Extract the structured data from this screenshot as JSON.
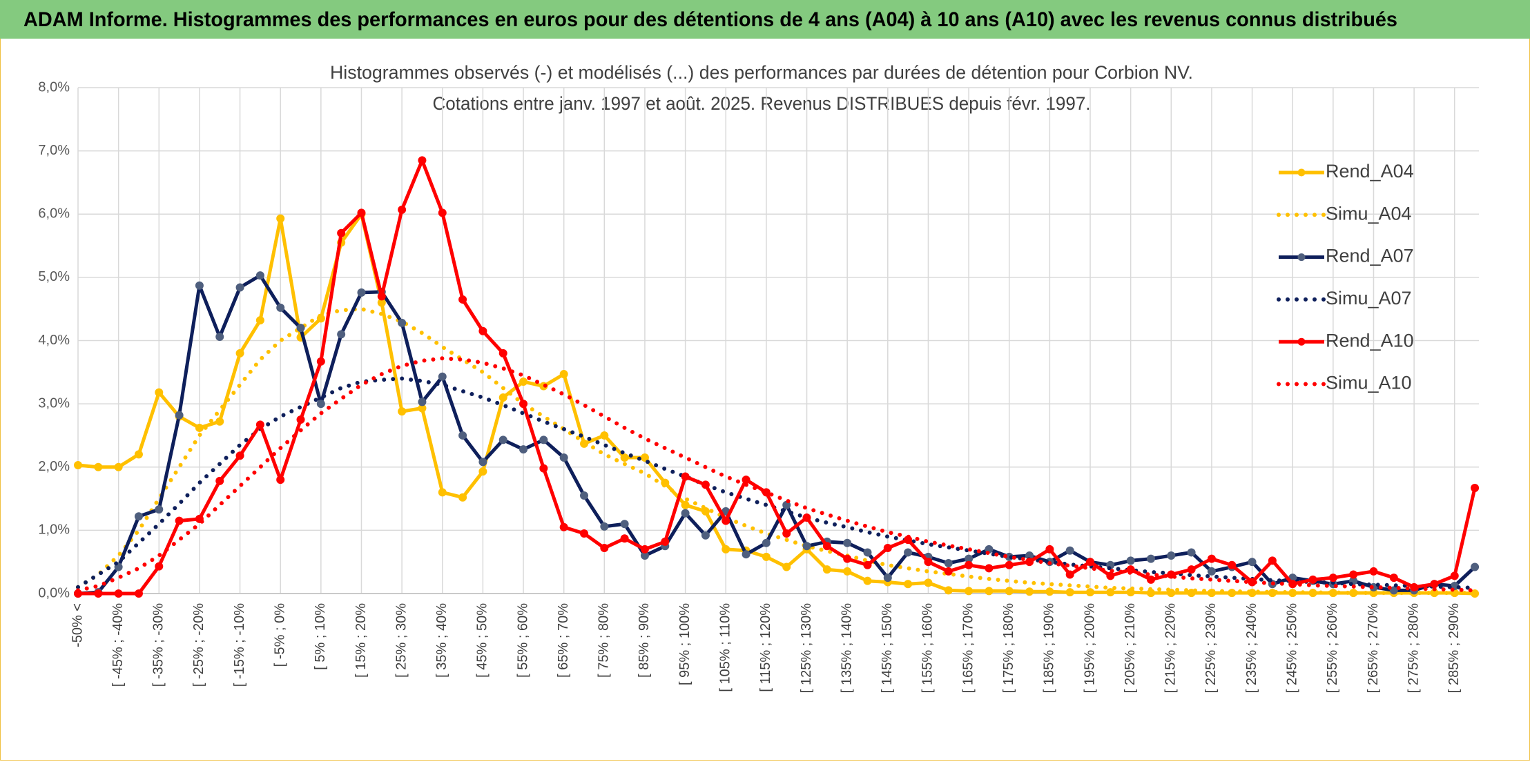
{
  "chart_data": {
    "type": "line",
    "header": "ADAM Informe. Histogrammes des performances en euros pour des détentions de 4 ans (A04) à 10 ans (A10) avec les revenus connus distribués",
    "title": "Histogrammes observés (-) et modélisés (...) des performances par durées de détention pour Corbion NV.",
    "subtitle": "Cotations entre janv. 1997 et août. 2025. Revenus DISTRIBUES depuis févr. 1997.",
    "categories": [
      "-50% <",
      null,
      "[ -45% ; -40%",
      null,
      "[ -35% ; -30%",
      null,
      "[ -25% ; -20%",
      null,
      "[ -15% ; -10%",
      null,
      "[ -5% ; 0%",
      null,
      "[ 5% ; 10%",
      null,
      "[ 15% ; 20%",
      null,
      "[ 25% ; 30%",
      null,
      "[ 35% ; 40%",
      null,
      "[ 45% ; 50%",
      null,
      "[ 55% ; 60%",
      null,
      "[ 65% ; 70%",
      null,
      "[ 75% ; 80%",
      null,
      "[ 85% ; 90%",
      null,
      "[ 95% ; 100%",
      null,
      "[ 105% ; 110%",
      null,
      "[ 115% ; 120%",
      null,
      "[ 125% ; 130%",
      null,
      "[ 135% ; 140%",
      null,
      "[ 145% ; 150%",
      null,
      "[ 155% ; 160%",
      null,
      "[ 165% ; 170%",
      null,
      "[ 175% ; 180%",
      null,
      "[ 185% ; 190%",
      null,
      "[ 195% ; 200%",
      null,
      "[ 205% ; 210%",
      null,
      "[ 215% ; 220%",
      null,
      "[ 225% ; 230%",
      null,
      "[ 235% ; 240%",
      null,
      "[ 245% ; 250%",
      null,
      "[ 255% ; 260%",
      null,
      "[ 265% ; 270%",
      null,
      "[ 275% ; 280%",
      null,
      "[ 285% ; 290%",
      null
    ],
    "ylim": [
      0,
      8
    ],
    "yticks": [
      {
        "value": 0,
        "label": "0,0%"
      },
      {
        "value": 1,
        "label": "1,0%"
      },
      {
        "value": 2,
        "label": "2,0%"
      },
      {
        "value": 3,
        "label": "3,0%"
      },
      {
        "value": 4,
        "label": "4,0%"
      },
      {
        "value": 5,
        "label": "5,0%"
      },
      {
        "value": 6,
        "label": "6,0%"
      },
      {
        "value": 7,
        "label": "7,0%"
      },
      {
        "value": 8,
        "label": "8,0%"
      }
    ],
    "grid": true,
    "legend": "right",
    "series": [
      {
        "name": "Rend_A04",
        "color": "#FFC000",
        "marker_color": "#FFC000",
        "style": "solid",
        "markers": true,
        "values": [
          2.03,
          2.0,
          2.0,
          2.2,
          3.18,
          2.8,
          2.62,
          2.72,
          3.8,
          4.32,
          5.93,
          4.05,
          4.35,
          5.55,
          6.0,
          4.6,
          2.88,
          2.93,
          1.6,
          1.52,
          1.93,
          3.1,
          3.35,
          3.28,
          3.47,
          2.37,
          2.5,
          2.15,
          2.15,
          1.75,
          1.4,
          1.3,
          0.7,
          0.68,
          0.58,
          0.42,
          0.7,
          0.38,
          0.35,
          0.2,
          0.18,
          0.15,
          0.17,
          0.05,
          0.04,
          0.04,
          0.04,
          0.03,
          0.03,
          0.02,
          0.02,
          0.02,
          0.02,
          0.01,
          0.01,
          0.01,
          0.01,
          0.01,
          0.01,
          0.01,
          0.01,
          0.01,
          0.01,
          0.01,
          0.01,
          0.01,
          0.01,
          0.01,
          0.01,
          0.0
        ]
      },
      {
        "name": "Simu_A04",
        "color": "#FFC000",
        "style": "dotted",
        "markers": false,
        "values": [
          0.1,
          0.3,
          0.6,
          1.0,
          1.5,
          2.0,
          2.5,
          2.9,
          3.3,
          3.7,
          4.0,
          4.2,
          4.4,
          4.48,
          4.5,
          4.42,
          4.3,
          4.12,
          3.9,
          3.7,
          3.5,
          3.25,
          3.0,
          2.8,
          2.6,
          2.4,
          2.2,
          2.05,
          1.9,
          1.7,
          1.5,
          1.35,
          1.2,
          1.07,
          0.95,
          0.85,
          0.75,
          0.67,
          0.6,
          0.52,
          0.45,
          0.4,
          0.35,
          0.31,
          0.27,
          0.23,
          0.2,
          0.17,
          0.15,
          0.13,
          0.11,
          0.09,
          0.08,
          0.07,
          0.06,
          0.05,
          0.04,
          0.035,
          0.03,
          0.025,
          0.02,
          0.018,
          0.015,
          0.012,
          0.01,
          0.01,
          0.01,
          0.01,
          0.01,
          0.01
        ]
      },
      {
        "name": "Rend_A07",
        "color": "#0E1F5B",
        "marker_color": "#4F5F7E",
        "style": "solid",
        "markers": true,
        "values": [
          0.0,
          0.02,
          0.42,
          1.22,
          1.33,
          2.82,
          4.87,
          4.06,
          4.84,
          5.03,
          4.52,
          4.2,
          3.0,
          4.1,
          4.76,
          4.77,
          4.28,
          3.03,
          3.43,
          2.5,
          2.08,
          2.43,
          2.28,
          2.43,
          2.15,
          1.55,
          1.06,
          1.1,
          0.6,
          0.75,
          1.27,
          0.92,
          1.3,
          0.62,
          0.8,
          1.4,
          0.75,
          0.82,
          0.8,
          0.65,
          0.25,
          0.65,
          0.58,
          0.48,
          0.55,
          0.7,
          0.58,
          0.6,
          0.5,
          0.68,
          0.5,
          0.45,
          0.52,
          0.55,
          0.6,
          0.65,
          0.35,
          0.42,
          0.5,
          0.15,
          0.25,
          0.2,
          0.15,
          0.2,
          0.1,
          0.05,
          0.05,
          0.15,
          0.12,
          0.42
        ]
      },
      {
        "name": "Simu_A07",
        "color": "#0E1F5B",
        "style": "dotted",
        "markers": false,
        "values": [
          0.1,
          0.3,
          0.5,
          0.8,
          1.1,
          1.42,
          1.75,
          2.05,
          2.35,
          2.6,
          2.8,
          2.95,
          3.1,
          3.25,
          3.35,
          3.38,
          3.4,
          3.36,
          3.3,
          3.2,
          3.1,
          2.98,
          2.85,
          2.72,
          2.6,
          2.48,
          2.35,
          2.22,
          2.1,
          1.97,
          1.85,
          1.72,
          1.6,
          1.5,
          1.4,
          1.3,
          1.2,
          1.12,
          1.05,
          0.97,
          0.9,
          0.84,
          0.78,
          0.73,
          0.68,
          0.63,
          0.58,
          0.54,
          0.5,
          0.46,
          0.43,
          0.4,
          0.37,
          0.34,
          0.32,
          0.29,
          0.27,
          0.25,
          0.23,
          0.21,
          0.2,
          0.18,
          0.17,
          0.15,
          0.14,
          0.13,
          0.12,
          0.11,
          0.1,
          0.09
        ]
      },
      {
        "name": "Rend_A10",
        "color": "#FF0000",
        "marker_color": "#FF0000",
        "style": "solid",
        "markers": true,
        "values": [
          0,
          0,
          0,
          0,
          0.43,
          1.15,
          1.18,
          1.78,
          2.18,
          2.67,
          1.8,
          2.75,
          3.67,
          5.7,
          6.02,
          4.7,
          6.07,
          6.85,
          6.02,
          4.65,
          4.15,
          3.8,
          3.0,
          1.98,
          1.05,
          0.95,
          0.72,
          0.87,
          0.7,
          0.82,
          1.85,
          1.72,
          1.15,
          1.8,
          1.6,
          0.95,
          1.2,
          0.75,
          0.55,
          0.45,
          0.72,
          0.85,
          0.5,
          0.35,
          0.45,
          0.4,
          0.45,
          0.5,
          0.7,
          0.3,
          0.5,
          0.28,
          0.38,
          0.22,
          0.3,
          0.38,
          0.55,
          0.45,
          0.18,
          0.52,
          0.15,
          0.22,
          0.25,
          0.3,
          0.35,
          0.25,
          0.1,
          0.15,
          0.28,
          1.67
        ]
      },
      {
        "name": "Simu_A10",
        "color": "#FF0000",
        "style": "dotted",
        "markers": false,
        "values": [
          0.05,
          0.12,
          0.25,
          0.4,
          0.6,
          0.85,
          1.1,
          1.4,
          1.7,
          2.0,
          2.3,
          2.58,
          2.85,
          3.08,
          3.3,
          3.47,
          3.6,
          3.68,
          3.72,
          3.7,
          3.65,
          3.56,
          3.45,
          3.3,
          3.15,
          2.98,
          2.8,
          2.62,
          2.45,
          2.3,
          2.15,
          2.0,
          1.85,
          1.72,
          1.6,
          1.47,
          1.35,
          1.25,
          1.15,
          1.06,
          0.97,
          0.9,
          0.82,
          0.76,
          0.7,
          0.64,
          0.58,
          0.53,
          0.48,
          0.44,
          0.4,
          0.36,
          0.33,
          0.3,
          0.27,
          0.24,
          0.22,
          0.2,
          0.18,
          0.16,
          0.15,
          0.13,
          0.12,
          0.11,
          0.1,
          0.09,
          0.08,
          0.07,
          0.06,
          0.05
        ]
      }
    ]
  }
}
